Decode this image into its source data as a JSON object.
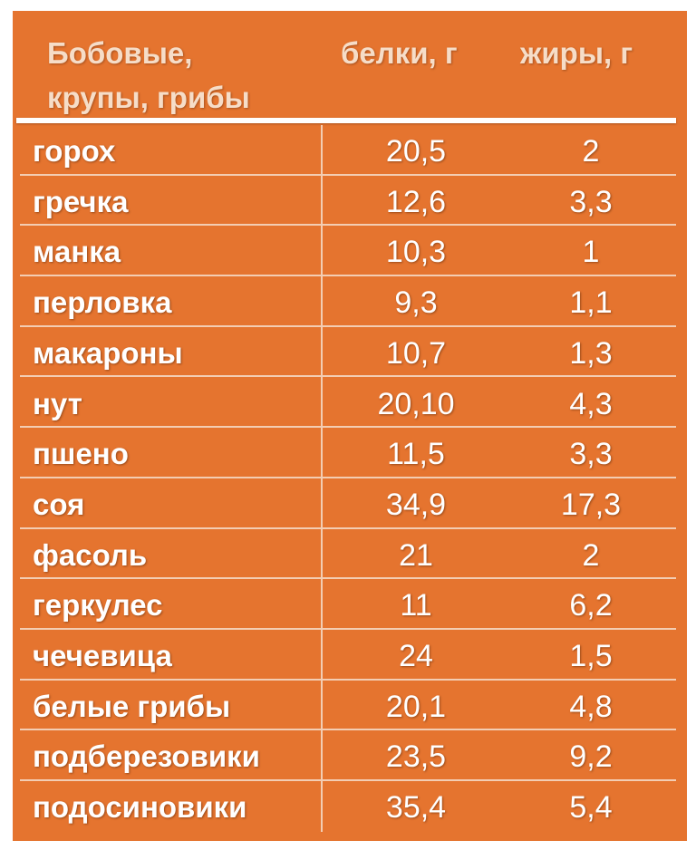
{
  "table": {
    "headers": {
      "name": "Бобовые,\nкрупы, грибы",
      "protein": "белки, г",
      "fat": "жиры, г"
    },
    "rows": [
      {
        "name": "горох",
        "protein": "20,5",
        "fat": "2"
      },
      {
        "name": "гречка",
        "protein": "12,6",
        "fat": "3,3"
      },
      {
        "name": "манка",
        "protein": "10,3",
        "fat": "1"
      },
      {
        "name": "перловка",
        "protein": "9,3",
        "fat": "1,1"
      },
      {
        "name": "макароны",
        "protein": "10,7",
        "fat": "1,3"
      },
      {
        "name": "нут",
        "protein": "20,10",
        "fat": "4,3"
      },
      {
        "name": "пшено",
        "protein": "11,5",
        "fat": "3,3"
      },
      {
        "name": "соя",
        "protein": "34,9",
        "fat": "17,3"
      },
      {
        "name": "фасоль",
        "protein": "21",
        "fat": "2"
      },
      {
        "name": "геркулес",
        "protein": "11",
        "fat": "6,2"
      },
      {
        "name": "чечевица",
        "protein": "24",
        "fat": "1,5"
      },
      {
        "name": "белые грибы",
        "protein": "20,1",
        "fat": "4,8"
      },
      {
        "name": "подберезовики",
        "protein": "23,5",
        "fat": "9,2"
      },
      {
        "name": "подосиновики",
        "protein": "35,4",
        "fat": "5,4"
      }
    ]
  },
  "colors": {
    "background": "#e5742f",
    "text": "#ffffff",
    "header_text": "#f6ddc8",
    "grid_line": "#f3cdb3"
  }
}
